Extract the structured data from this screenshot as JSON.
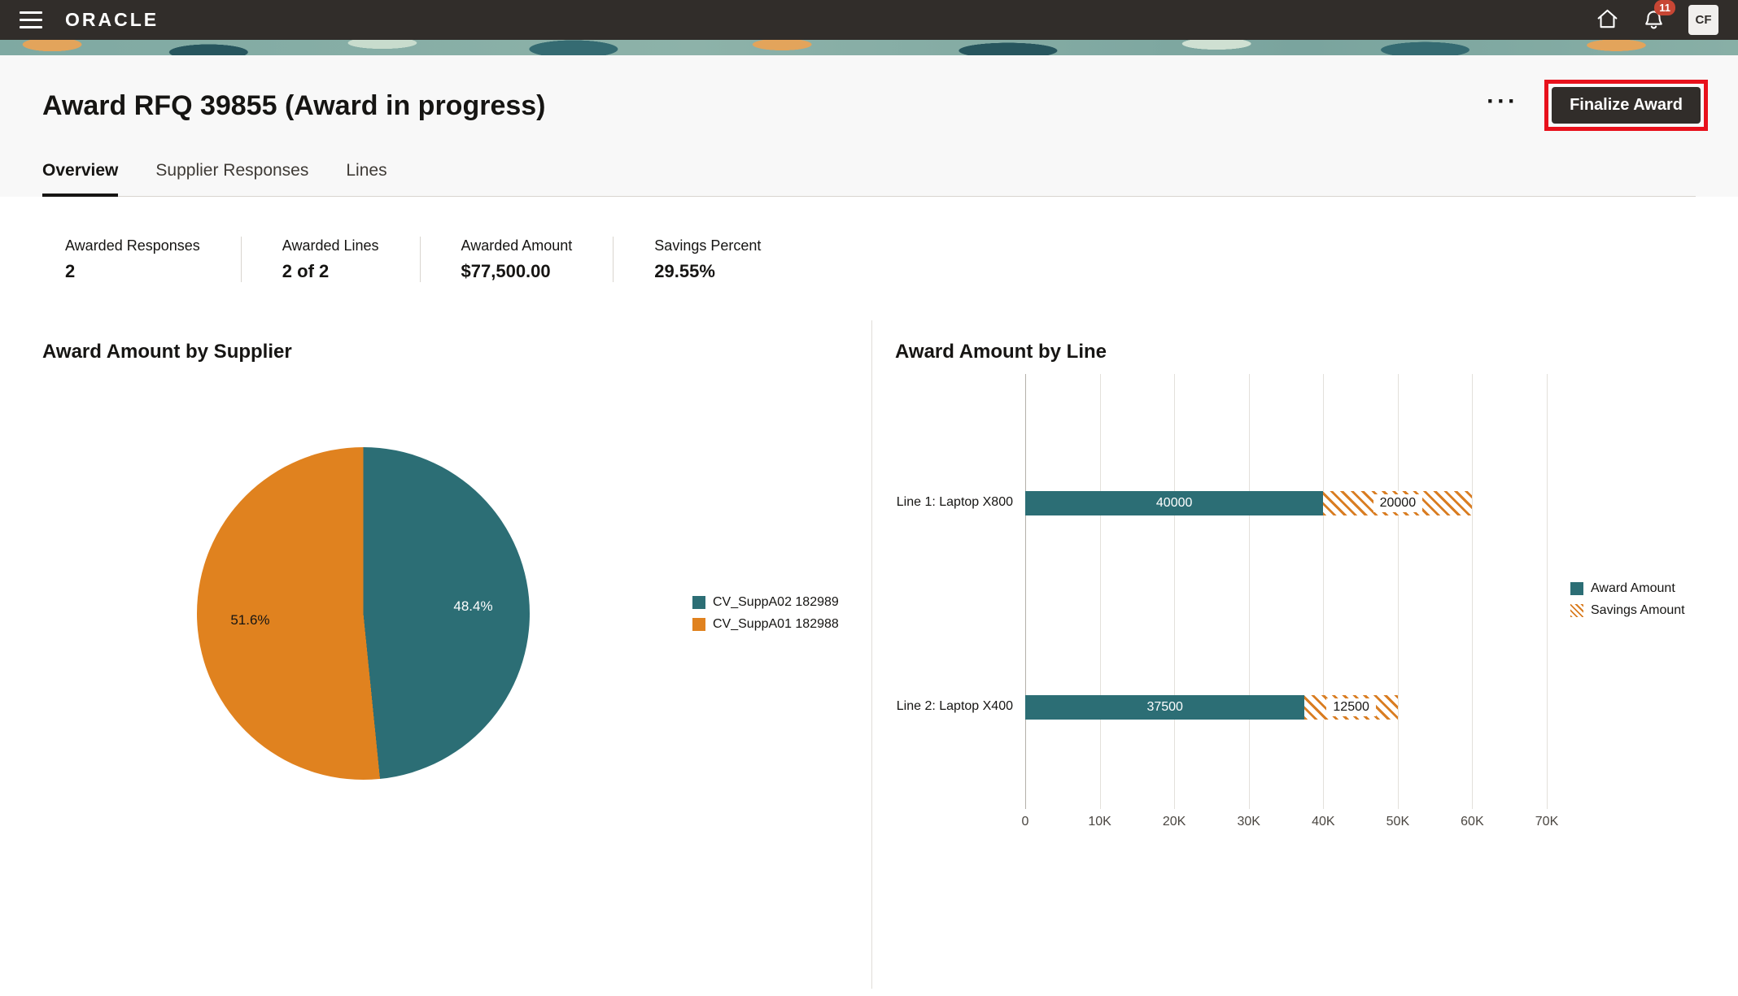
{
  "topbar": {
    "brand": "ORACLE",
    "notification_badge": "11",
    "avatar_initials": "CF"
  },
  "header": {
    "title": "Award RFQ 39855 (Award in progress)",
    "more_actions_label": "···",
    "finalize_button": "Finalize Award"
  },
  "tabs": [
    {
      "label": "Overview",
      "active": true
    },
    {
      "label": "Supplier Responses",
      "active": false
    },
    {
      "label": "Lines",
      "active": false
    }
  ],
  "stats": [
    {
      "label": "Awarded Responses",
      "value": "2"
    },
    {
      "label": "Awarded Lines",
      "value": "2 of 2"
    },
    {
      "label": "Awarded Amount",
      "value": "$77,500.00"
    },
    {
      "label": "Savings Percent",
      "value": "29.55%"
    }
  ],
  "colors": {
    "teal": "#2c6e75",
    "orange": "#e0821f",
    "hatch_orange": "#d97d22",
    "topbar_bg": "#312d2a",
    "badge_red": "#c74634",
    "highlight_red": "#e8111c"
  },
  "chart_data": [
    {
      "type": "pie",
      "title": "Award Amount by Supplier",
      "slices": [
        {
          "label": "CV_SuppA02 182989",
          "percent": 48.4,
          "display": "48.4%",
          "color": "#2c6e75",
          "value": 37500
        },
        {
          "label": "CV_SuppA01 182988",
          "percent": 51.6,
          "display": "51.6%",
          "color": "#e0821f",
          "value": 40000
        }
      ],
      "legend_position": "right"
    },
    {
      "type": "bar",
      "orientation": "horizontal",
      "stacked": true,
      "title": "Award Amount by Line",
      "categories": [
        "Line 1: Laptop X800",
        "Line 2: Laptop X400"
      ],
      "series": [
        {
          "name": "Award Amount",
          "style": "solid",
          "color": "#2c6e75",
          "values": [
            40000,
            37500
          ]
        },
        {
          "name": "Savings Amount",
          "style": "hatched",
          "color": "#d97d22",
          "values": [
            20000,
            12500
          ]
        }
      ],
      "xlim": [
        0,
        70000
      ],
      "tick_values": [
        0,
        10000,
        20000,
        30000,
        40000,
        50000,
        60000,
        70000
      ],
      "x_ticks": [
        "0",
        "10K",
        "20K",
        "30K",
        "40K",
        "50K",
        "60K",
        "70K"
      ],
      "grid": true,
      "legend_position": "right"
    }
  ]
}
